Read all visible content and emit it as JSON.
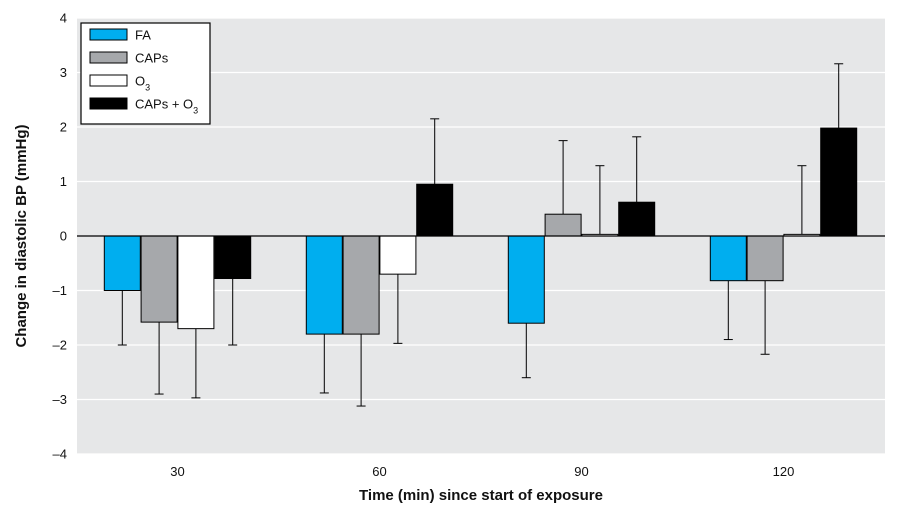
{
  "chart_data": {
    "type": "bar",
    "xlabel": "Time (min) since start of exposure",
    "ylabel": "Change in diastolic BP (mmHg)",
    "ylim": [
      -4,
      4
    ],
    "yticks": [
      "4",
      "3",
      "2",
      "1",
      "0",
      "–1",
      "–2",
      "–3",
      "–4"
    ],
    "ytick_values": [
      4,
      3,
      2,
      1,
      0,
      -1,
      -2,
      -3,
      -4
    ],
    "categories": [
      "30",
      "60",
      "90",
      "120"
    ],
    "grid": true,
    "legend_position": "top-left",
    "series": [
      {
        "name": "FA",
        "color": "#00aeef",
        "values": [
          -1.0,
          -1.8,
          -1.6,
          -0.82
        ],
        "error": [
          1.0,
          1.08,
          1.0,
          1.08
        ]
      },
      {
        "name": "CAPs",
        "color": "#a6a8ab",
        "values": [
          -1.58,
          -1.8,
          0.4,
          -0.82
        ],
        "error": [
          1.32,
          1.32,
          1.35,
          1.35
        ]
      },
      {
        "name": "O3",
        "color": "#ffffff",
        "values": [
          -1.7,
          -0.7,
          0.03,
          0.03
        ],
        "error": [
          1.27,
          1.27,
          1.26,
          1.26
        ]
      },
      {
        "name": "CAPs + O3",
        "color": "#000000",
        "values": [
          -0.78,
          0.95,
          0.62,
          1.98
        ],
        "error": [
          1.22,
          1.2,
          1.2,
          1.18
        ]
      }
    ]
  }
}
